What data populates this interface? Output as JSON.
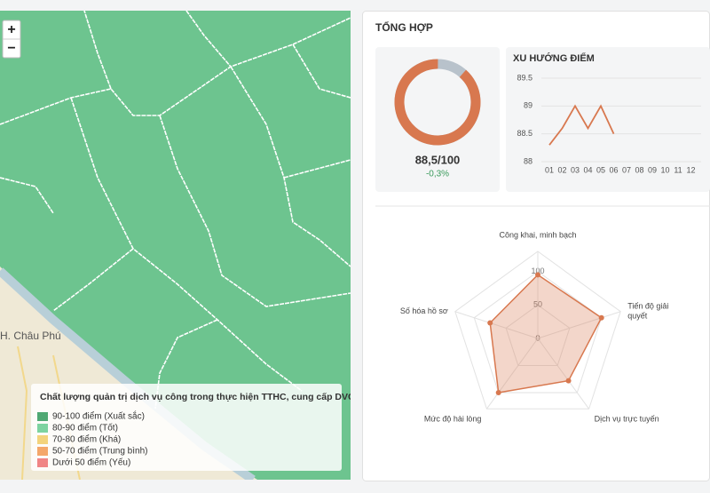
{
  "map": {
    "zoom_in": "+",
    "zoom_out": "−",
    "place_label": "H. Châu Phú",
    "legend": {
      "title": "Chất lượng quản trị dịch vụ công trong thực hiện TTHC, cung cấp DVC",
      "items": [
        {
          "label": "90-100 điểm (Xuất sắc)",
          "color": "#4fa873"
        },
        {
          "label": "80-90 điểm (Tốt)",
          "color": "#7dd3a0"
        },
        {
          "label": "70-80 điểm (Khá)",
          "color": "#f3d37c"
        },
        {
          "label": "50-70 điểm (Trung bình)",
          "color": "#f4a76a"
        },
        {
          "label": "Dưới 50 điểm (Yếu)",
          "color": "#f08585"
        }
      ]
    }
  },
  "summary": {
    "title": "TỔNG HỢP",
    "score": 88.5,
    "score_max": 100,
    "score_label": "88,5/100",
    "change": -0.3,
    "change_label": "-0,3%",
    "colors": [
      "#d8784f",
      "#b8c2cb"
    ]
  },
  "chart_data": [
    {
      "type": "line",
      "title": "XU HƯỚNG ĐIỂM",
      "categories": [
        "01",
        "02",
        "03",
        "04",
        "05",
        "06",
        "07",
        "08",
        "09",
        "10",
        "11",
        "12"
      ],
      "values": [
        88.3,
        88.6,
        89.0,
        88.6,
        89.0,
        88.5,
        null,
        null,
        null,
        null,
        null,
        null
      ],
      "color": "#d8784f",
      "ylim": [
        88,
        89.5
      ],
      "yticks": [
        88,
        88.5,
        89,
        89.5
      ],
      "grid": true
    },
    {
      "type": "radar",
      "categories": [
        "Công khai, minh bạch",
        "Tiến độ giải quyết",
        "Dịch vụ trực tuyến",
        "Mức độ hài lòng",
        "Số hóa hồ sơ"
      ],
      "values": [
        95,
        100,
        78,
        100,
        75
      ],
      "color": "#d8784f",
      "rlim": [
        0,
        130
      ],
      "rticks": [
        0,
        50,
        100
      ]
    }
  ]
}
